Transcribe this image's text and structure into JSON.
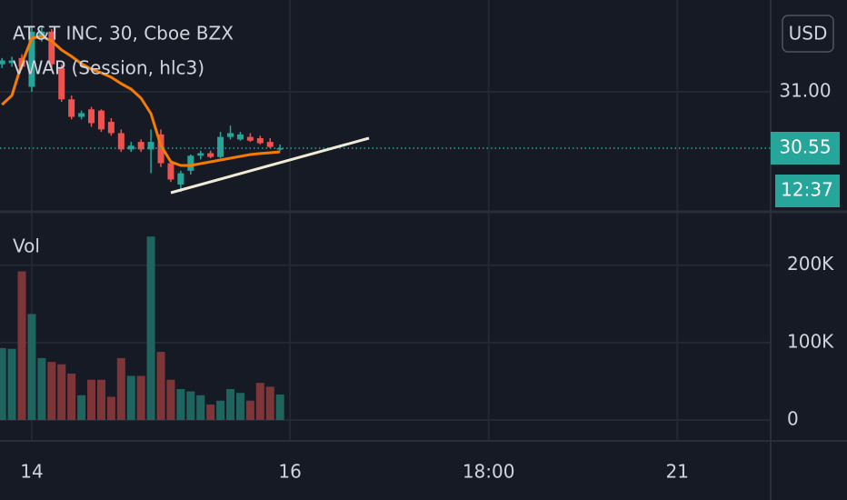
{
  "chart_data": {
    "type": "candlestick",
    "title": "AT&T INC, 30, Cboe BZX",
    "indicator": "VWAP (Session, hlc3)",
    "currency": "USD",
    "up_color": "#26a69a",
    "down_color": "#ef5350",
    "categories": [
      null,
      null,
      null,
      null,
      null,
      null,
      null,
      null,
      null,
      null,
      null,
      null,
      null,
      null,
      null,
      null,
      null,
      null,
      null,
      null,
      null,
      null,
      null,
      null,
      null,
      null,
      null,
      null,
      null
    ],
    "open": [
      31.22,
      31.23,
      31.27,
      31.04,
      31.44,
      31.48,
      31.19,
      30.94,
      30.8,
      30.86,
      30.85,
      30.76,
      30.67,
      30.54,
      30.6,
      30.54,
      30.66,
      30.43,
      30.26,
      30.37,
      30.49,
      30.51,
      30.48,
      30.64,
      30.62,
      30.64,
      30.63,
      30.6,
      30.54
    ],
    "high": [
      31.27,
      31.28,
      31.3,
      31.52,
      31.52,
      31.5,
      31.22,
      30.97,
      30.85,
      30.88,
      30.86,
      30.79,
      30.7,
      30.6,
      30.62,
      30.7,
      30.7,
      30.45,
      30.37,
      30.5,
      30.53,
      30.53,
      30.68,
      30.73,
      30.68,
      30.67,
      30.65,
      30.63,
      30.58
    ],
    "low": [
      31.19,
      31.2,
      31.18,
      31.0,
      31.4,
      31.19,
      30.92,
      30.78,
      30.78,
      30.72,
      30.68,
      30.65,
      30.52,
      30.52,
      30.52,
      30.35,
      30.4,
      30.28,
      30.2,
      30.34,
      30.46,
      30.47,
      30.47,
      30.62,
      30.61,
      30.6,
      30.58,
      30.55,
      30.53
    ],
    "close": [
      31.25,
      31.25,
      31.2,
      31.48,
      31.48,
      31.22,
      30.94,
      30.8,
      30.83,
      30.75,
      30.7,
      30.67,
      30.54,
      30.57,
      30.54,
      30.6,
      30.43,
      30.3,
      30.35,
      30.49,
      30.51,
      30.48,
      30.64,
      30.67,
      30.66,
      30.61,
      30.59,
      30.56,
      30.55
    ],
    "vwap": {
      "color": "#f57c00",
      "values": [
        30.898,
        30.971,
        31.225,
        31.428,
        31.443,
        31.406,
        31.334,
        31.283,
        31.225,
        31.181,
        31.152,
        31.116,
        31.065,
        31.022,
        30.949,
        30.826,
        30.572,
        30.441,
        30.412,
        30.412,
        30.427,
        30.441,
        30.456,
        30.47,
        30.485,
        30.499,
        30.507,
        30.514,
        30.521
      ]
    },
    "last_price": 30.55,
    "countdown": "12:37",
    "ylim": [
      30.042,
      31.733
    ],
    "yticks": [
      {
        "value": 31,
        "label": "31.00"
      }
    ],
    "xlim": [
      -0.2,
      77.4
    ],
    "xticks": [
      {
        "value": 3,
        "label": "14"
      },
      {
        "value": 29,
        "label": "16"
      },
      {
        "value": 49,
        "label": "18:00"
      },
      {
        "value": 68,
        "label": "21"
      }
    ],
    "volume": {
      "label": "Vol",
      "up_color": "#1f645e",
      "down_color": "#7e3538",
      "values": [
        93000,
        92000,
        192000,
        137000,
        80000,
        75000,
        72000,
        60000,
        32000,
        52000,
        52000,
        30000,
        80000,
        57000,
        57000,
        237000,
        88000,
        52000,
        40000,
        37000,
        32000,
        20000,
        25000,
        40000,
        35000,
        25000,
        48000,
        43000,
        33000
      ],
      "ylim": [
        -27000,
        269000
      ],
      "yticks": [
        {
          "value": 200000,
          "label": "200K"
        },
        {
          "value": 100000,
          "label": "100K"
        },
        0
      ]
    },
    "grid": true
  }
}
